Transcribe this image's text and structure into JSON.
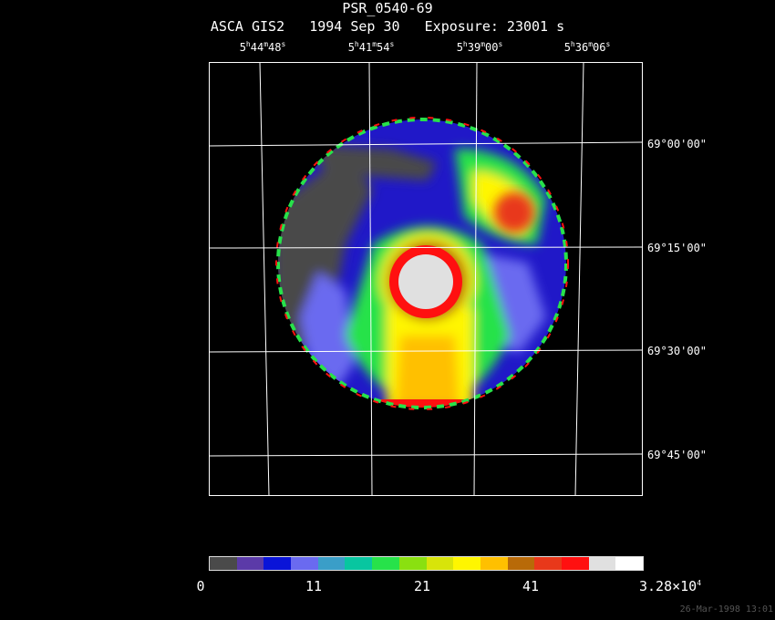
{
  "header": {
    "title": "PSR_0540-69",
    "subtitle": "ASCA GIS2   1994 Sep 30   Exposure: 23001 s"
  },
  "ra_labels": [
    {
      "h": "5",
      "m": "44",
      "s": "48"
    },
    {
      "h": "5",
      "m": "41",
      "s": "54"
    },
    {
      "h": "5",
      "m": "39",
      "s": "00"
    },
    {
      "h": "5",
      "m": "36",
      "s": "06"
    }
  ],
  "dec_labels": [
    "69°00'00\"",
    "69°15'00\"",
    "69°30'00\"",
    "69°45'00\""
  ],
  "colorbar": {
    "colors": [
      "#4a4a4a",
      "#5b3aa8",
      "#0a14d8",
      "#6a6af0",
      "#3a9ec8",
      "#08c6a0",
      "#27e24a",
      "#8ae010",
      "#d8e40a",
      "#fff600",
      "#ffc000",
      "#b86a08",
      "#e8381a",
      "#ff1010",
      "#e0e0e0",
      "#ffffff"
    ],
    "labels": [
      "0",
      "11",
      "21",
      "41"
    ],
    "max_label": "3.28×10",
    "max_exp": "4"
  },
  "footer": {
    "timestamp": "26-Mar-1998 13:01"
  }
}
